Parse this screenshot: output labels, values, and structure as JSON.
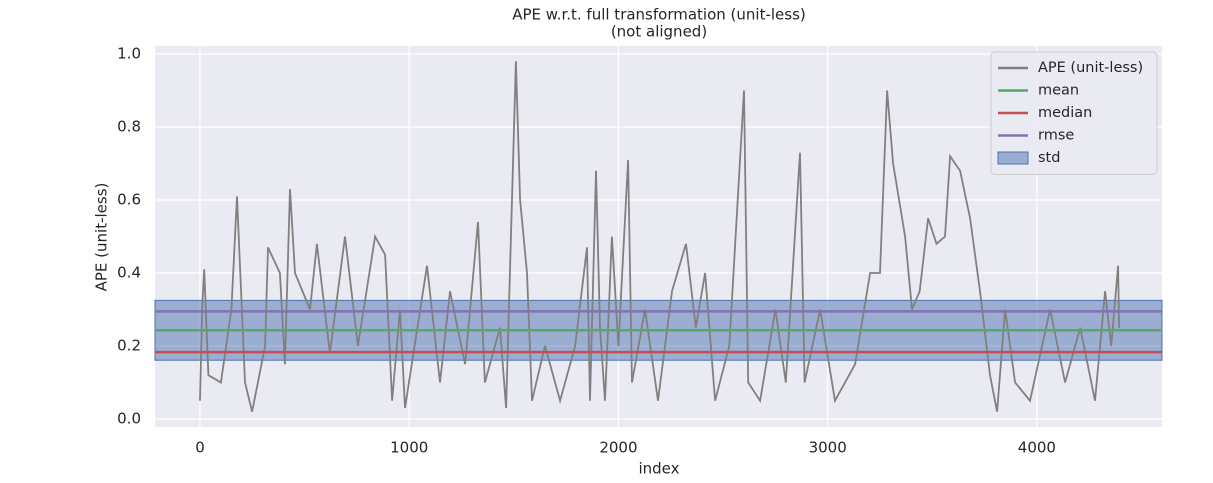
{
  "chart_data": {
    "type": "line",
    "title": "APE w.r.t. full transformation (unit-less)",
    "subtitle": "(not aligned)",
    "x_label": "index",
    "y_label": "APE (unit-less)",
    "xlim": [
      -215,
      4598
    ],
    "ylim": [
      -0.022,
      1.022
    ],
    "xticks": [
      0,
      1000,
      2000,
      3000,
      4000
    ],
    "yticks": [
      {
        "value": 0,
        "label": "0.0"
      },
      0.2,
      0.4,
      0.6,
      0.8,
      {
        "value": 1,
        "label": "1.0"
      }
    ],
    "grid": true,
    "background": "#eaeaf2",
    "legend": "upper right",
    "series": [
      {
        "name": "APE (unit-less)",
        "color": "#808080",
        "x": [
          0,
          10,
          20,
          40,
          100,
          150,
          177,
          215,
          249,
          311,
          325,
          382,
          406,
          430,
          454,
          526,
          559,
          621,
          693,
          755,
          837,
          885,
          918,
          956,
          980,
          1085,
          1147,
          1195,
          1267,
          1329,
          1362,
          1434,
          1463,
          1510,
          1530,
          1563,
          1587,
          1649,
          1721,
          1793,
          1850,
          1864,
          1893,
          1912,
          1936,
          1969,
          2000,
          2046,
          2065,
          2127,
          2189,
          2256,
          2323,
          2370,
          2414,
          2462,
          2530,
          2600,
          2620,
          2677,
          2750,
          2800,
          2868,
          2890,
          2964,
          3035,
          3131,
          3203,
          3250,
          3284,
          3313,
          3370,
          3403,
          3440,
          3480,
          3520,
          3561,
          3585,
          3633,
          3681,
          3728,
          3776,
          3810,
          3848,
          3896,
          3967,
          4063,
          4135,
          4207,
          4278,
          4326,
          4355,
          4388,
          4393
        ],
        "values": [
          0.05,
          0.3,
          0.41,
          0.12,
          0.1,
          0.3,
          0.61,
          0.1,
          0.02,
          0.2,
          0.47,
          0.4,
          0.15,
          0.63,
          0.4,
          0.3,
          0.48,
          0.18,
          0.5,
          0.2,
          0.5,
          0.45,
          0.05,
          0.3,
          0.03,
          0.42,
          0.1,
          0.35,
          0.15,
          0.54,
          0.1,
          0.25,
          0.03,
          0.98,
          0.6,
          0.4,
          0.05,
          0.2,
          0.05,
          0.2,
          0.47,
          0.05,
          0.68,
          0.25,
          0.05,
          0.5,
          0.2,
          0.71,
          0.1,
          0.3,
          0.05,
          0.35,
          0.48,
          0.25,
          0.4,
          0.05,
          0.2,
          0.9,
          0.1,
          0.05,
          0.3,
          0.1,
          0.73,
          0.1,
          0.3,
          0.05,
          0.15,
          0.4,
          0.4,
          0.9,
          0.7,
          0.5,
          0.3,
          0.35,
          0.55,
          0.48,
          0.5,
          0.72,
          0.68,
          0.55,
          0.35,
          0.12,
          0.02,
          0.3,
          0.1,
          0.05,
          0.3,
          0.1,
          0.25,
          0.05,
          0.35,
          0.2,
          0.42,
          0.25
        ]
      }
    ],
    "stats": [
      {
        "name": "mean",
        "color": "#55a868",
        "value": 0.243
      },
      {
        "name": "median",
        "color": "#c44e52",
        "value": 0.183
      },
      {
        "name": "rmse",
        "color": "#8172b2",
        "value": 0.295
      },
      {
        "name": "std",
        "color": "#4c72b0",
        "value": 0.082
      }
    ]
  }
}
